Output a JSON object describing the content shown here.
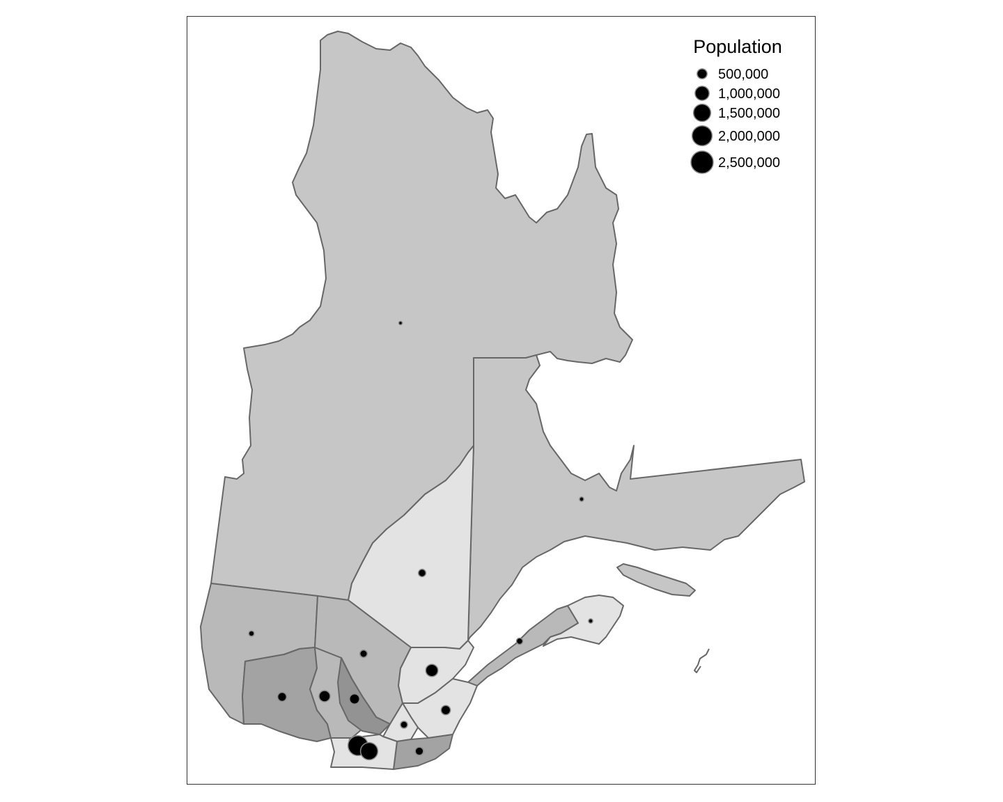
{
  "legend": {
    "title": "Population",
    "entries": [
      {
        "label": "500,000",
        "value": 500000
      },
      {
        "label": "1,000,000",
        "value": 1000000
      },
      {
        "label": "1,500,000",
        "value": 1500000
      },
      {
        "label": "2,000,000",
        "value": 2000000
      },
      {
        "label": "2,500,000",
        "value": 2500000
      }
    ]
  },
  "colors": {
    "region_light": "#e3e3e3",
    "region_medium": "#c6c6c6",
    "region_mid_dark": "#b9b9b9",
    "region_dark": "#a3a3a3",
    "region_darker": "#939393",
    "border": "#676767",
    "symbol_fill": "#000000",
    "symbol_stroke": "#8a8a8a"
  },
  "symbols": [
    {
      "name": "region-nord-du-quebec",
      "population": 45000
    },
    {
      "name": "region-cote-nord",
      "population": 92000
    },
    {
      "name": "region-saguenay-lac-saint-jean",
      "population": 278000
    },
    {
      "name": "region-abitibi-temiscamingue",
      "population": 147000
    },
    {
      "name": "region-mauricie",
      "population": 268000
    },
    {
      "name": "region-capitale-nationale",
      "population": 750000
    },
    {
      "name": "region-bas-saint-laurent",
      "population": 200000
    },
    {
      "name": "region-gaspesie",
      "population": 92000
    },
    {
      "name": "region-outaouais",
      "population": 390000
    },
    {
      "name": "region-laurentides",
      "population": 620000
    },
    {
      "name": "region-lanaudiere",
      "population": 510000
    },
    {
      "name": "region-chaudiere-appalaches",
      "population": 430000
    },
    {
      "name": "region-centre-du-quebec",
      "population": 245000
    },
    {
      "name": "region-estrie",
      "population": 330000
    },
    {
      "name": "region-laval",
      "population": 430000
    },
    {
      "name": "region-montreal",
      "population": 2000000
    },
    {
      "name": "region-monteregie",
      "population": 1500000
    }
  ]
}
